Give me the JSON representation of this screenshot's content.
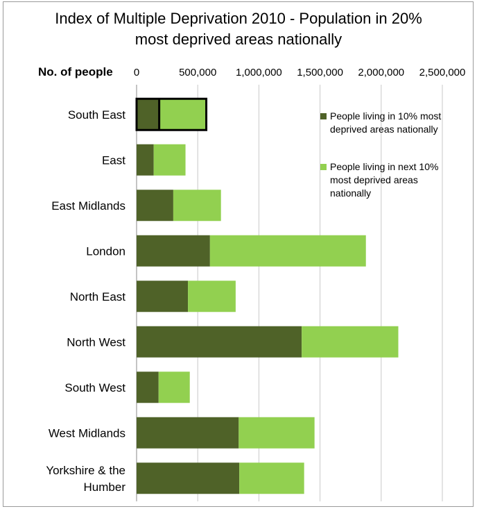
{
  "chart_data": {
    "type": "bar",
    "orientation": "horizontal",
    "stacked": true,
    "title_lines": [
      "Index of Multiple Deprivation 2010 - Population in 20%",
      "most deprived areas nationally"
    ],
    "ylabel": "No. of people",
    "xlabel": "",
    "xlim": [
      0,
      2500000
    ],
    "x_ticks": [
      0,
      500000,
      1000000,
      1500000,
      2000000,
      2500000
    ],
    "x_tick_labels": [
      "0",
      "500,000",
      "1,000,000",
      "1,500,000",
      "2,000,000",
      "2,500,000"
    ],
    "tick_position": "top",
    "grid": true,
    "legend_position": "top-right",
    "highlighted_category": "South East",
    "categories": [
      "South East",
      "East",
      "East Midlands",
      "London",
      "North East",
      "North West",
      "South West",
      "West Midlands",
      "Yorkshire & the Humber"
    ],
    "category_lines": [
      [
        "South East"
      ],
      [
        "East"
      ],
      [
        "East Midlands"
      ],
      [
        "London"
      ],
      [
        "North East"
      ],
      [
        "North West"
      ],
      [
        "South West"
      ],
      [
        "West Midlands"
      ],
      [
        "Yorkshire & the",
        "Humber"
      ]
    ],
    "series": [
      {
        "name": "People living in 10% most deprived areas nationally",
        "legend_lines": [
          "People living in 10% most",
          "deprived areas nationally"
        ],
        "color": "#4f6228",
        "values": [
          185000,
          140000,
          300000,
          600000,
          420000,
          1350000,
          180000,
          835000,
          840000
        ]
      },
      {
        "name": "People living in next 10% most deprived areas nationally",
        "legend_lines": [
          "People living in next 10%",
          "most deprived areas",
          "nationally"
        ],
        "color": "#92d050",
        "values": [
          385000,
          260000,
          390000,
          1275000,
          390000,
          790000,
          255000,
          620000,
          530000
        ]
      }
    ]
  }
}
